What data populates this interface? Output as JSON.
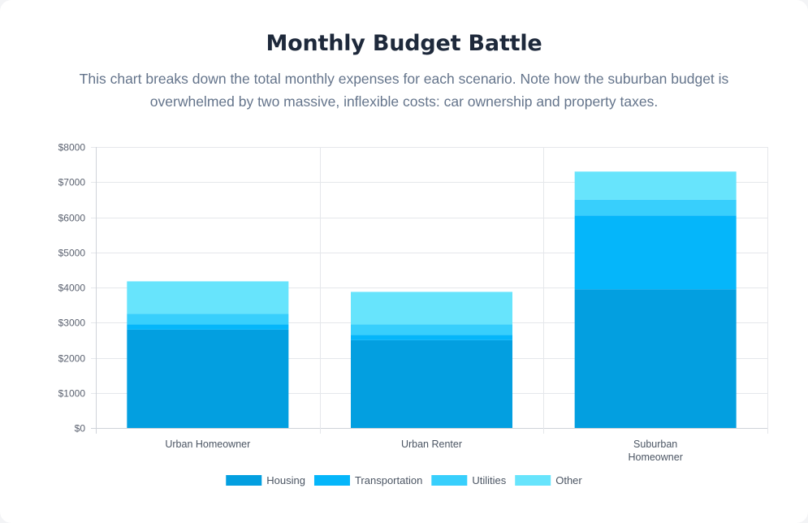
{
  "header": {
    "title": "Monthly Budget Battle",
    "subtitle": "This chart breaks down the total monthly expenses for each scenario. Note how the suburban budget is overwhelmed by two massive, inflexible costs: car ownership and property taxes."
  },
  "chart_data": {
    "type": "bar",
    "stacked": true,
    "title": "",
    "xlabel": "",
    "ylabel": "",
    "ylim": [
      0,
      8000
    ],
    "yticks": [
      0,
      1000,
      2000,
      3000,
      4000,
      5000,
      6000,
      7000,
      8000
    ],
    "ytick_labels": [
      "$0",
      "$1000",
      "$2000",
      "$3000",
      "$4000",
      "$5000",
      "$6000",
      "$7000",
      "$8000"
    ],
    "categories": [
      [
        "Urban Homeowner"
      ],
      [
        "Urban Renter"
      ],
      [
        "Suburban",
        "Homeowner"
      ]
    ],
    "series": [
      {
        "name": "Housing",
        "color": "#039fe0",
        "values": [
          2800,
          2500,
          3950
        ]
      },
      {
        "name": "Transportation",
        "color": "#05b6fa",
        "values": [
          150,
          150,
          2100
        ]
      },
      {
        "name": "Utilities",
        "color": "#38cffc",
        "values": [
          300,
          300,
          450
        ]
      },
      {
        "name": "Other",
        "color": "#67e4fc",
        "values": [
          925,
          925,
          800
        ]
      }
    ],
    "grid": true,
    "legend": "bottom"
  }
}
